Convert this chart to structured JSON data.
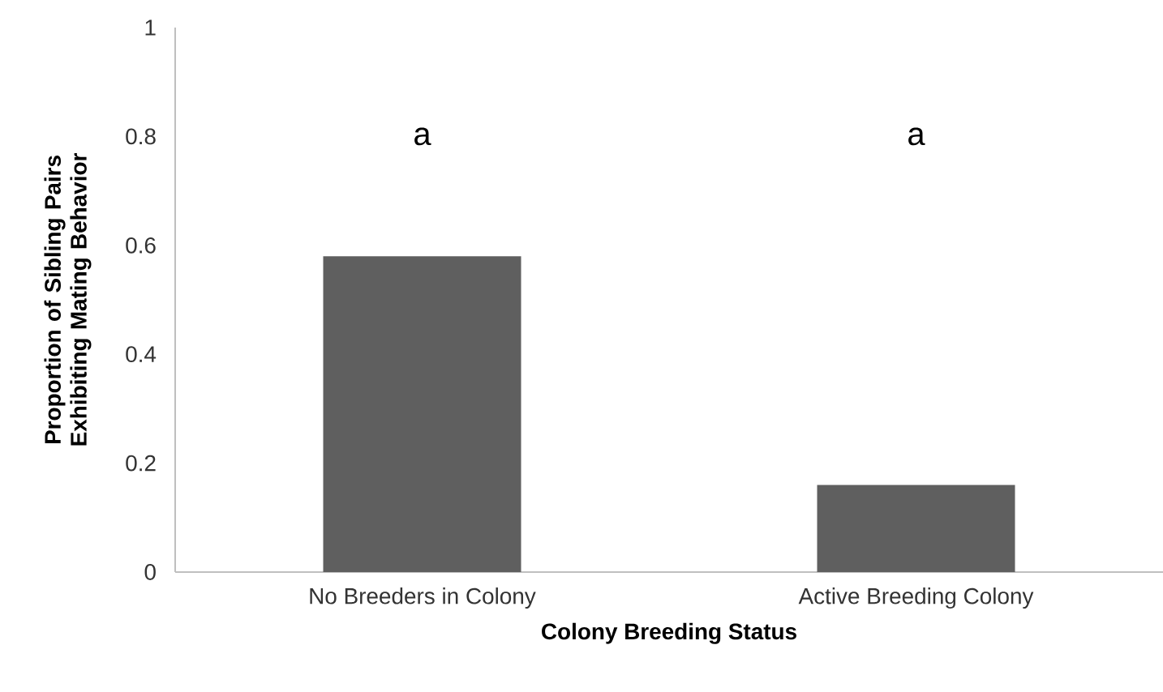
{
  "chart_data": {
    "type": "bar",
    "categories": [
      "No Breeders in Colony",
      "Active Breeding Colony"
    ],
    "values": [
      0.58,
      0.16
    ],
    "color": "#5f5f5f",
    "xlabel": "Colony Breeding Status",
    "ylabel": "Proportion of Sibling Pairs Exhibiting Mating Behavior",
    "ylim": [
      0,
      1
    ],
    "yticks": [
      0,
      0.2,
      0.4,
      0.6,
      0.8,
      1
    ],
    "grid": false,
    "annotations": [
      "a",
      "a"
    ]
  }
}
